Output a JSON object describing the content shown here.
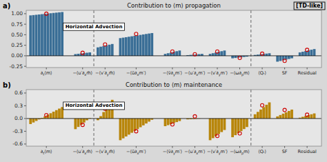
{
  "chart_data": [
    {
      "type": "bar",
      "title": "Contribution to ⟨m⟩ propagation",
      "categories": [
        "∂t⟨m⟩",
        "−⟨u′∂xm̄⟩",
        "−⟨v′∂ym̄⟩",
        "−⟨ū∂xm′⟩",
        "−⟨v̄∂ym′⟩",
        "−⟨u′∂xm′⟩",
        "−⟨v′∂ym′⟩",
        "−⟨ω∂pm⟩",
        "⟨Qᵣ⟩",
        "SF",
        "Residual"
      ],
      "series": [
        {
          "type": "bar",
          "color": "#3a6e96",
          "values": [
            [
              0.96,
              0.967273,
              0.974545,
              0.981818,
              0.989091,
              0.996364,
              1.003636,
              1.010909,
              1.018182,
              1.025455,
              1.032727,
              1.04
            ],
            [
              0.04,
              0.048,
              0.056,
              0.064,
              0.072,
              0.08
            ],
            [
              0.2,
              0.216,
              0.232,
              0.248,
              0.264,
              0.28
            ],
            [
              0.42,
              0.430909,
              0.441818,
              0.452727,
              0.463636,
              0.474545,
              0.485455,
              0.496364,
              0.507273,
              0.518182,
              0.529091,
              0.54
            ],
            [
              0.045,
              0.061,
              0.077,
              0.093,
              0.109,
              0.125
            ],
            [
              0.015,
              0.021,
              0.027,
              0.033,
              0.039,
              0.045
            ],
            [
              0.045,
              0.061,
              0.077,
              0.093,
              0.109,
              0.125
            ],
            [
              -0.06,
              -0.052,
              -0.044,
              -0.036,
              -0.028,
              -0.02
            ],
            [
              0.02,
              0.028,
              0.036,
              0.044,
              0.052,
              0.06
            ],
            [
              -0.14,
              -0.124,
              -0.108,
              -0.092,
              -0.076,
              -0.06
            ],
            [
              0.08,
              0.096,
              0.112,
              0.128,
              0.144,
              0.16
            ]
          ]
        },
        {
          "type": "scatter",
          "marker": "circle",
          "color": "#cc0000",
          "values": [
            1.0,
            0.07,
            0.27,
            0.52,
            0.1,
            0.035,
            0.1,
            -0.05,
            0.05,
            -0.12,
            0.14
          ]
        }
      ],
      "ylim": [
        -0.28,
        1.08
      ],
      "yticks": [
        -0.25,
        {
          "value": 0,
          "label": "0.00"
        },
        0.25,
        {
          "value": 0.5,
          "label": "0.50"
        },
        0.75,
        {
          "value": 1.0,
          "label": "1.00"
        }
      ],
      "grid": false,
      "annotations": [
        "a)",
        "Horizontal Advection",
        "[TD-like]"
      ]
    },
    {
      "type": "bar",
      "title": "Contribution to ⟨m⟩ maintenance",
      "categories": [
        "∂t⟨m⟩",
        "−⟨u′∂xm̄⟩",
        "−⟨v′∂ym̄⟩",
        "−⟨ū∂xm′⟩",
        "−⟨v̄∂ym′⟩",
        "−⟨u′∂xm′⟩",
        "−⟨v′∂ym′⟩",
        "−⟨ω∂pm⟩",
        "⟨Qᵣ⟩",
        "SF",
        "Residual"
      ],
      "series": [
        {
          "type": "bar",
          "color": "#b8860b",
          "values": [
            [
              -0.13,
              -0.093636,
              -0.057273,
              -0.020909,
              0.015455,
              0.051818,
              0.088182,
              0.124545,
              0.160909,
              0.197273,
              0.233636,
              0.27
            ],
            [
              -0.25,
              -0.198,
              -0.146,
              -0.094,
              -0.042,
              0.01
            ],
            [
              -0.04,
              0.056,
              0.152,
              0.248,
              0.344,
              0.44
            ],
            [
              -0.51,
              -0.466364,
              -0.422727,
              -0.379091,
              -0.335455,
              -0.291818,
              -0.248182,
              -0.204545,
              -0.160909,
              -0.117273,
              -0.073636,
              -0.03
            ],
            [
              -0.18,
              -0.156,
              -0.132,
              -0.108,
              -0.084,
              -0.06
            ],
            [
              -0.02,
              -0.016,
              -0.012,
              -0.008,
              -0.004,
              0.0
            ],
            [
              -0.51,
              -0.462,
              -0.414,
              -0.366,
              -0.318,
              -0.27
            ],
            [
              -0.44,
              -0.392,
              -0.344,
              -0.296,
              -0.248,
              -0.2
            ],
            [
              0.1,
              0.156,
              0.212,
              0.268,
              0.324,
              0.38
            ],
            [
              0.05,
              0.082,
              0.114,
              0.146,
              0.178,
              0.21
            ],
            [
              0.02,
              0.04,
              0.06,
              0.08,
              0.1,
              0.12
            ]
          ]
        },
        {
          "type": "scatter",
          "marker": "circle",
          "color": "#cc0000",
          "values": [
            0.08,
            -0.15,
            0.23,
            -0.3,
            -0.14,
            0.05,
            -0.41,
            -0.35,
            0.31,
            0.2,
            0.09
          ]
        }
      ],
      "ylim": [
        -0.65,
        0.68
      ],
      "yticks": [
        -0.6,
        -0.3,
        {
          "value": 0.0,
          "label": "0.0"
        },
        0.3,
        0.6
      ],
      "grid": false,
      "annotations": [
        "b)",
        "Horizontal Advection"
      ]
    }
  ]
}
